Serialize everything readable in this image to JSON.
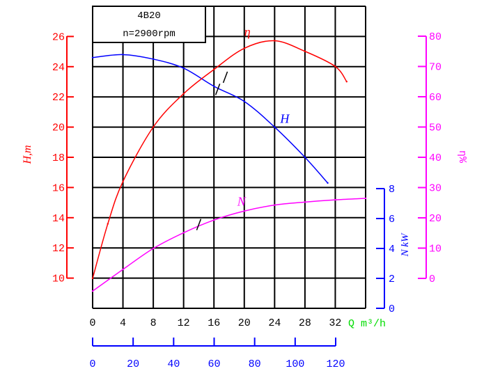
{
  "chart_data": {
    "type": "line",
    "title": "4B20",
    "subtitle": "n=2900rpm",
    "xlabel": "Q m³/h",
    "xlim": [
      0,
      36
    ],
    "x_ticks": [
      "0",
      "4",
      "8",
      "12",
      "16",
      "20",
      "24",
      "28",
      "32"
    ],
    "x2_ticks": [
      "0",
      "20",
      "40",
      "60",
      "80",
      "100",
      "120"
    ],
    "axes": {
      "head": {
        "label": "H,m",
        "range": [
          8,
          28
        ],
        "ticks": [
          "10",
          "12",
          "14",
          "16",
          "18",
          "20",
          "22",
          "24",
          "26"
        ],
        "color": "#ff0000"
      },
      "power": {
        "label": "N kW",
        "range": [
          0,
          8
        ],
        "ticks": [
          "0",
          "2",
          "4",
          "6",
          "8"
        ],
        "color": "#0000ff"
      },
      "efficiency": {
        "label": "η%",
        "range": [
          0,
          80
        ],
        "ticks": [
          "0",
          "10",
          "20",
          "30",
          "40",
          "50",
          "60",
          "70",
          "80"
        ],
        "color": "#ff00ff"
      }
    },
    "grid": true,
    "series": [
      {
        "name": "H",
        "label": "H",
        "axis": "head",
        "color": "#0000ff",
        "x": [
          0,
          4,
          8,
          12,
          16,
          20,
          24,
          28,
          31
        ],
        "y": [
          24.6,
          24.8,
          24.5,
          23.9,
          22.7,
          21.7,
          20.0,
          18.0,
          16.3
        ]
      },
      {
        "name": "η",
        "label": "η",
        "axis": "efficiency",
        "color": "#ff0000",
        "x": [
          0,
          2,
          4,
          8,
          12,
          16,
          20,
          24,
          28,
          32,
          33.5
        ],
        "y": [
          0,
          18,
          32,
          50,
          61,
          69,
          76,
          78.5,
          75,
          70,
          65
        ]
      },
      {
        "name": "N",
        "label": "N",
        "axis": "power",
        "color": "#ff00ff",
        "x": [
          0,
          4,
          8,
          12,
          16,
          20,
          24,
          28,
          32,
          36
        ],
        "y": [
          1.15,
          2.6,
          4.0,
          5.05,
          5.9,
          6.5,
          6.9,
          7.1,
          7.25,
          7.35
        ]
      }
    ]
  }
}
